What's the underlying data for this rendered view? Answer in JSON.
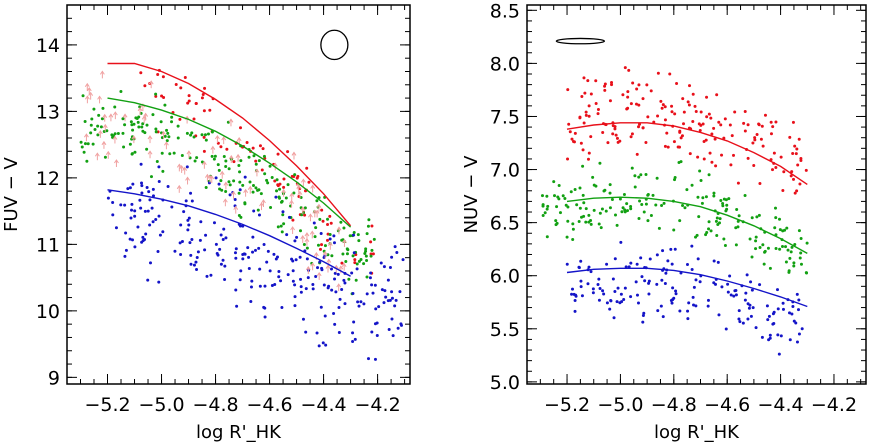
{
  "chart_data": [
    {
      "type": "scatter",
      "panel": "left",
      "xlabel": "log R'_HK",
      "ylabel": "FUV − V",
      "xlim": [
        -5.35,
        -4.08
      ],
      "ylim": [
        8.9,
        14.6
      ],
      "x_reversed": true,
      "xticks": [
        -5.2,
        -5.0,
        -4.8,
        -4.6,
        -4.4,
        -4.2
      ],
      "xtick_labels": [
        "−5.2",
        "−5.0",
        "−4.8",
        "−4.6",
        "−4.4",
        "−4.2"
      ],
      "yticks": [
        9,
        10,
        11,
        12,
        13,
        14
      ],
      "ytick_labels": [
        "9",
        "10",
        "11",
        "12",
        "13",
        "14"
      ],
      "ellipse": {
        "x": -4.36,
        "y": 14.0,
        "rx": 0.05,
        "ry": 0.22
      },
      "series": [
        {
          "name": "upper envelope (red)",
          "color": "#e8101a",
          "cloud": {
            "x": [
              -5.1,
              -4.2
            ],
            "y_offsets": [
              -1.1,
              0.3
            ],
            "count": 90
          },
          "curve": {
            "x": [
              -5.2,
              -5.1,
              -5.0,
              -4.9,
              -4.8,
              -4.7,
              -4.6,
              -4.5,
              -4.4,
              -4.3
            ],
            "y": [
              13.72,
              13.72,
              13.6,
              13.42,
              13.18,
              12.9,
              12.56,
              12.18,
              11.76,
              11.28
            ]
          }
        },
        {
          "name": "middle (green)",
          "color": "#12a012",
          "cloud": {
            "x": [
              -5.3,
              -4.2
            ],
            "y_offsets": [
              -1.2,
              0.4
            ],
            "count": 230
          },
          "curve": {
            "x": [
              -5.2,
              -5.1,
              -5.0,
              -4.9,
              -4.8,
              -4.7,
              -4.6,
              -4.5,
              -4.4,
              -4.3
            ],
            "y": [
              13.2,
              13.13,
              13.02,
              12.88,
              12.7,
              12.48,
              12.22,
              11.94,
              11.62,
              11.26
            ]
          }
        },
        {
          "name": "lower envelope (blue)",
          "color": "#1414c8",
          "cloud": {
            "x": [
              -5.2,
              -4.1
            ],
            "y_offsets": [
              -1.6,
              0.9
            ],
            "count": 270
          },
          "curve": {
            "x": [
              -5.2,
              -5.1,
              -5.0,
              -4.9,
              -4.8,
              -4.7,
              -4.6,
              -4.5,
              -4.4,
              -4.3
            ],
            "y": [
              11.82,
              11.76,
              11.68,
              11.58,
              11.45,
              11.3,
              11.13,
              10.94,
              10.74,
              10.52
            ]
          }
        },
        {
          "name": "upper limits (pink)",
          "color": "#f0a0a0",
          "cloud": {
            "x": [
              -5.3,
              -4.3
            ],
            "y_offsets": [
              -1.8,
              0.6
            ],
            "count": 90
          }
        }
      ]
    },
    {
      "type": "scatter",
      "panel": "right",
      "xlabel": "log R'_HK",
      "ylabel": "NUV − V",
      "xlim": [
        -5.35,
        -4.08
      ],
      "ylim": [
        4.98,
        8.55
      ],
      "x_reversed": true,
      "xticks": [
        -5.2,
        -5.0,
        -4.8,
        -4.6,
        -4.4,
        -4.2
      ],
      "xtick_labels": [
        "−5.2",
        "−5.0",
        "−4.8",
        "−4.6",
        "−4.4",
        "−4.2"
      ],
      "yticks": [
        5.0,
        5.5,
        6.0,
        6.5,
        7.0,
        7.5,
        8.0,
        8.5
      ],
      "ytick_labels": [
        "5.0",
        "5.5",
        "6.0",
        "6.5",
        "7.0",
        "7.5",
        "8.0",
        "8.5"
      ],
      "ellipse": {
        "x": -5.15,
        "y": 8.21,
        "rx": 0.09,
        "ry": 0.025
      },
      "series": [
        {
          "name": "upper (red)",
          "color": "#e8101a",
          "cloud": {
            "x": [
              -5.2,
              -4.3
            ],
            "y_offsets": [
              -0.55,
              0.7
            ],
            "count": 190
          },
          "curve": {
            "x": [
              -5.2,
              -5.1,
              -5.0,
              -4.9,
              -4.8,
              -4.7,
              -4.6,
              -4.5,
              -4.4,
              -4.3
            ],
            "y": [
              7.38,
              7.42,
              7.44,
              7.44,
              7.41,
              7.35,
              7.27,
              7.16,
              7.03,
              6.86
            ]
          }
        },
        {
          "name": "middle (green)",
          "color": "#12a012",
          "cloud": {
            "x": [
              -5.3,
              -4.3
            ],
            "y_offsets": [
              -0.5,
              0.45
            ],
            "count": 200
          },
          "curve": {
            "x": [
              -5.2,
              -5.1,
              -5.0,
              -4.9,
              -4.8,
              -4.7,
              -4.6,
              -4.5,
              -4.4,
              -4.3
            ],
            "y": [
              6.7,
              6.73,
              6.74,
              6.73,
              6.7,
              6.65,
              6.57,
              6.47,
              6.35,
              6.21
            ]
          }
        },
        {
          "name": "lower (blue)",
          "color": "#1414c8",
          "cloud": {
            "x": [
              -5.2,
              -4.3
            ],
            "y_offsets": [
              -0.7,
              0.4
            ],
            "count": 170
          },
          "curve": {
            "x": [
              -5.2,
              -5.1,
              -5.0,
              -4.9,
              -4.8,
              -4.7,
              -4.6,
              -4.5,
              -4.4,
              -4.3
            ],
            "y": [
              6.03,
              6.06,
              6.07,
              6.07,
              6.05,
              6.01,
              5.95,
              5.88,
              5.8,
              5.71
            ]
          }
        }
      ]
    }
  ]
}
